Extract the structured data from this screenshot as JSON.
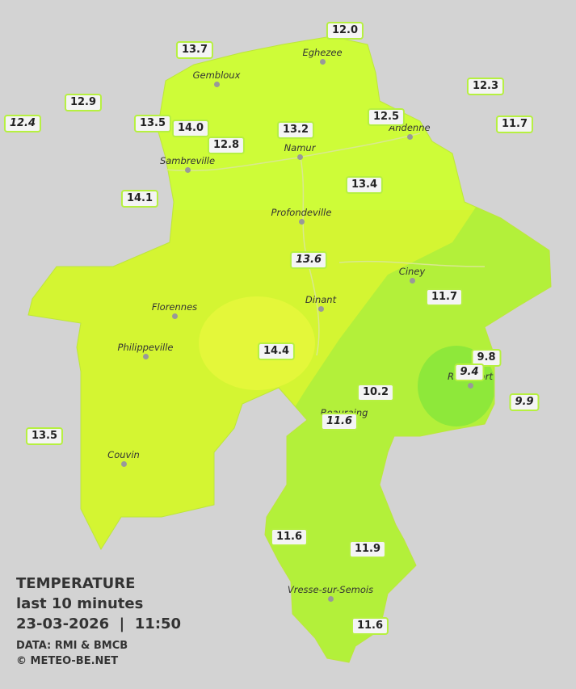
{
  "cities": [
    "Eghezee",
    "Gembloux",
    "Andenne",
    "Namur",
    "Sambreville",
    "Profondeville",
    "Ciney",
    "Dinant",
    "Florennes",
    "Philippeville",
    "Rochefort",
    "Beauraing",
    "Couvin",
    "Vresse-sur-Semois"
  ],
  "readings": [
    {
      "label": "12.0",
      "italic": false
    },
    {
      "label": "13.7",
      "italic": false
    },
    {
      "label": "12.3",
      "italic": false
    },
    {
      "label": "12.9",
      "italic": false
    },
    {
      "label": "12.4",
      "italic": true
    },
    {
      "label": "13.5",
      "italic": false
    },
    {
      "label": "14.0",
      "italic": false
    },
    {
      "label": "12.5",
      "italic": false
    },
    {
      "label": "11.7",
      "italic": false
    },
    {
      "label": "13.2",
      "italic": false
    },
    {
      "label": "12.8",
      "italic": false
    },
    {
      "label": "14.1",
      "italic": false
    },
    {
      "label": "13.4",
      "italic": false
    },
    {
      "label": "13.6",
      "italic": true
    },
    {
      "label": "11.7",
      "italic": false
    },
    {
      "label": "14.4",
      "italic": false
    },
    {
      "label": "9.8",
      "italic": false
    },
    {
      "label": "9.4",
      "italic": true
    },
    {
      "label": "10.2",
      "italic": false
    },
    {
      "label": "9.9",
      "italic": true
    },
    {
      "label": "11.6",
      "italic": true
    },
    {
      "label": "13.5",
      "italic": false
    },
    {
      "label": "11.6",
      "italic": false
    },
    {
      "label": "11.9",
      "italic": false
    },
    {
      "label": "11.6",
      "italic": false
    }
  ],
  "legend": {
    "title": "TEMPERATURE",
    "period": "last 10 minutes",
    "datetime": "23-03-2026  |  11:50",
    "source": "DATA: RMI & BMCB",
    "copyright": "© METEO-BE.NET"
  }
}
